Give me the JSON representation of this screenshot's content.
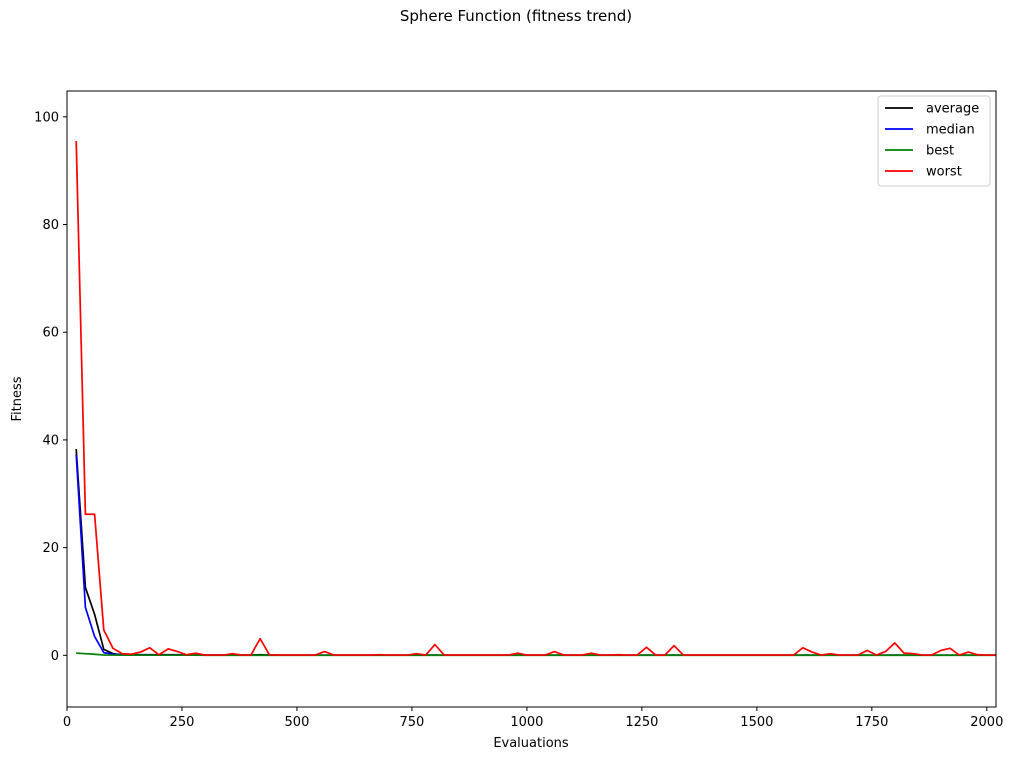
{
  "chart_data": {
    "type": "line",
    "title": "Sphere Function (fitness trend)",
    "xlabel": "Evaluations",
    "ylabel": "Fitness",
    "xlim": [
      0,
      2020
    ],
    "ylim": [
      -9.6,
      104.8
    ],
    "xticks": [
      0,
      250,
      500,
      750,
      1000,
      1250,
      1500,
      1750,
      2000
    ],
    "yticks": [
      0,
      20,
      40,
      60,
      80,
      100
    ],
    "grid": false,
    "legend_position": "top-right",
    "x": [
      20,
      40,
      60,
      80,
      100,
      120,
      140,
      160,
      180,
      200,
      220,
      240,
      260,
      280,
      300,
      320,
      340,
      360,
      380,
      400,
      420,
      440,
      460,
      480,
      500,
      520,
      540,
      560,
      580,
      600,
      620,
      640,
      660,
      680,
      700,
      720,
      740,
      760,
      780,
      800,
      820,
      840,
      860,
      880,
      900,
      920,
      940,
      960,
      980,
      1000,
      1020,
      1040,
      1060,
      1080,
      1100,
      1120,
      1140,
      1160,
      1180,
      1200,
      1220,
      1240,
      1260,
      1280,
      1300,
      1320,
      1340,
      1360,
      1380,
      1400,
      1420,
      1440,
      1460,
      1480,
      1500,
      1520,
      1540,
      1560,
      1580,
      1600,
      1620,
      1640,
      1660,
      1680,
      1700,
      1720,
      1740,
      1760,
      1780,
      1800,
      1820,
      1840,
      1860,
      1880,
      1900,
      1920,
      1940,
      1960,
      1980,
      2000,
      2020
    ],
    "series": [
      {
        "name": "average",
        "color": "#000000",
        "values": [
          38.3,
          12.6,
          7.6,
          1.1,
          0.3,
          0.1,
          0.1,
          0.1,
          0.1,
          0.1,
          0.1,
          0.1,
          0.05,
          0.05,
          0.03,
          0.03,
          0.03,
          0.03,
          0.03,
          0.03,
          0.1,
          0.03,
          0.02,
          0.02,
          0.02,
          0.02,
          0.02,
          0.02,
          0.02,
          0.02,
          0.02,
          0.02,
          0.02,
          0.02,
          0.02,
          0.02,
          0.02,
          0.02,
          0.02,
          0.05,
          0.02,
          0.02,
          0.02,
          0.02,
          0.02,
          0.02,
          0.02,
          0.02,
          0.02,
          0.02,
          0.02,
          0.02,
          0.02,
          0.02,
          0.02,
          0.02,
          0.02,
          0.02,
          0.02,
          0.02,
          0.02,
          0.02,
          0.05,
          0.02,
          0.02,
          0.05,
          0.02,
          0.02,
          0.02,
          0.02,
          0.02,
          0.02,
          0.02,
          0.02,
          0.02,
          0.02,
          0.02,
          0.02,
          0.02,
          0.05,
          0.02,
          0.02,
          0.02,
          0.02,
          0.02,
          0.02,
          0.02,
          0.02,
          0.02,
          0.05,
          0.02,
          0.02,
          0.02,
          0.02,
          0.02,
          0.02,
          0.02,
          0.02,
          0.02,
          0.02,
          0.02
        ]
      },
      {
        "name": "median",
        "color": "#0000ff",
        "values": [
          37.3,
          8.9,
          3.5,
          0.5,
          0.2,
          0.1,
          0.05,
          0.05,
          0.05,
          0.05,
          0.05,
          0.05,
          0.03,
          0.03,
          0.02,
          0.02,
          0.02,
          0.02,
          0.02,
          0.02,
          0.02,
          0.02,
          0.02,
          0.02,
          0.02,
          0.02,
          0.02,
          0.02,
          0.02,
          0.02,
          0.02,
          0.02,
          0.02,
          0.02,
          0.02,
          0.02,
          0.02,
          0.02,
          0.02,
          0.02,
          0.02,
          0.02,
          0.02,
          0.02,
          0.02,
          0.02,
          0.02,
          0.02,
          0.02,
          0.02,
          0.02,
          0.02,
          0.02,
          0.02,
          0.02,
          0.02,
          0.02,
          0.02,
          0.02,
          0.02,
          0.02,
          0.02,
          0.02,
          0.02,
          0.02,
          0.02,
          0.02,
          0.02,
          0.02,
          0.02,
          0.02,
          0.02,
          0.02,
          0.02,
          0.02,
          0.02,
          0.02,
          0.02,
          0.02,
          0.02,
          0.02,
          0.02,
          0.02,
          0.02,
          0.02,
          0.02,
          0.02,
          0.02,
          0.02,
          0.02,
          0.02,
          0.02,
          0.02,
          0.02,
          0.02,
          0.02,
          0.02,
          0.02,
          0.02,
          0.02,
          0.02
        ]
      },
      {
        "name": "best",
        "color": "#008000",
        "values": [
          0.4,
          0.3,
          0.2,
          0.05,
          0.05,
          0.03,
          0.03,
          0.02,
          0.02,
          0.02,
          0.02,
          0.02,
          0.02,
          0.02,
          0.01,
          0.01,
          0.01,
          0.01,
          0.01,
          0.01,
          0.01,
          0.01,
          0.01,
          0.01,
          0.01,
          0.01,
          0.01,
          0.01,
          0.01,
          0.01,
          0.01,
          0.01,
          0.01,
          0.01,
          0.01,
          0.01,
          0.01,
          0.01,
          0.01,
          0.01,
          0.01,
          0.01,
          0.01,
          0.01,
          0.01,
          0.01,
          0.01,
          0.01,
          0.01,
          0.01,
          0.01,
          0.01,
          0.01,
          0.01,
          0.01,
          0.01,
          0.01,
          0.01,
          0.01,
          0.01,
          0.01,
          0.01,
          0.01,
          0.01,
          0.01,
          0.01,
          0.01,
          0.01,
          0.01,
          0.01,
          0.01,
          0.01,
          0.01,
          0.01,
          0.01,
          0.01,
          0.01,
          0.01,
          0.01,
          0.01,
          0.01,
          0.01,
          0.01,
          0.01,
          0.01,
          0.01,
          0.01,
          0.01,
          0.01,
          0.01,
          0.01,
          0.01,
          0.01,
          0.01,
          0.01,
          0.01,
          0.01,
          0.01,
          0.01,
          0.01,
          0.01
        ]
      },
      {
        "name": "worst",
        "color": "#ff0000",
        "values": [
          95.5,
          26.2,
          26.2,
          4.7,
          1.3,
          0.3,
          0.2,
          0.6,
          1.4,
          0.1,
          1.2,
          0.7,
          0.1,
          0.4,
          0.05,
          0.05,
          0.05,
          0.3,
          0.05,
          0.05,
          3.1,
          0.1,
          0.05,
          0.05,
          0.05,
          0.05,
          0.05,
          0.7,
          0.05,
          0.05,
          0.05,
          0.05,
          0.05,
          0.1,
          0.05,
          0.05,
          0.05,
          0.3,
          0.05,
          2.0,
          0.05,
          0.05,
          0.05,
          0.05,
          0.05,
          0.05,
          0.05,
          0.05,
          0.4,
          0.05,
          0.05,
          0.05,
          0.7,
          0.05,
          0.05,
          0.05,
          0.4,
          0.05,
          0.05,
          0.1,
          0.05,
          0.05,
          1.5,
          0.05,
          0.05,
          1.8,
          0.05,
          0.05,
          0.05,
          0.05,
          0.05,
          0.05,
          0.05,
          0.05,
          0.05,
          0.05,
          0.05,
          0.05,
          0.05,
          1.4,
          0.6,
          0.05,
          0.3,
          0.05,
          0.05,
          0.05,
          0.9,
          0.05,
          0.7,
          2.3,
          0.4,
          0.3,
          0.05,
          0.05,
          0.9,
          1.3,
          0.05,
          0.6,
          0.1,
          0.05,
          0.05
        ]
      }
    ]
  }
}
